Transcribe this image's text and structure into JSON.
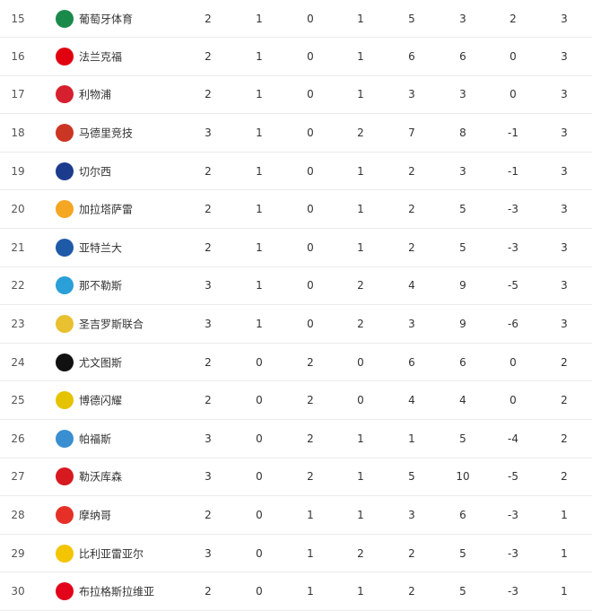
{
  "columns_note_hidden": null,
  "rows": [
    {
      "rank": "15",
      "team": "葡萄牙体育",
      "logo": "sporting-cp-logo",
      "color": "#1a8a4a",
      "values": [
        "2",
        "1",
        "0",
        "1",
        "5",
        "3",
        "2",
        "3"
      ]
    },
    {
      "rank": "16",
      "team": "法兰克福",
      "logo": "eintracht-frankfurt-logo",
      "color": "#e1000f",
      "values": [
        "2",
        "1",
        "0",
        "1",
        "6",
        "6",
        "0",
        "3"
      ]
    },
    {
      "rank": "17",
      "team": "利物浦",
      "logo": "liverpool-logo",
      "color": "#d6202f",
      "values": [
        "2",
        "1",
        "0",
        "1",
        "3",
        "3",
        "0",
        "3"
      ]
    },
    {
      "rank": "18",
      "team": "马德里竞技",
      "logo": "atletico-madrid-logo",
      "color": "#cb3524",
      "values": [
        "3",
        "1",
        "0",
        "2",
        "7",
        "8",
        "-1",
        "3"
      ]
    },
    {
      "rank": "19",
      "team": "切尔西",
      "logo": "chelsea-logo",
      "color": "#1d3b8c",
      "values": [
        "2",
        "1",
        "0",
        "1",
        "2",
        "3",
        "-1",
        "3"
      ]
    },
    {
      "rank": "20",
      "team": "加拉塔萨雷",
      "logo": "galatasaray-logo",
      "color": "#f5a623",
      "values": [
        "2",
        "1",
        "0",
        "1",
        "2",
        "5",
        "-3",
        "3"
      ]
    },
    {
      "rank": "21",
      "team": "亚特兰大",
      "logo": "atalanta-logo",
      "color": "#1e5aa8",
      "values": [
        "2",
        "1",
        "0",
        "1",
        "2",
        "5",
        "-3",
        "3"
      ]
    },
    {
      "rank": "22",
      "team": "那不勒斯",
      "logo": "napoli-logo",
      "color": "#2a9fd8",
      "values": [
        "3",
        "1",
        "0",
        "2",
        "4",
        "9",
        "-5",
        "3"
      ]
    },
    {
      "rank": "23",
      "team": "圣吉罗斯联合",
      "logo": "union-saint-gilloise-logo",
      "color": "#e8c030",
      "values": [
        "3",
        "1",
        "0",
        "2",
        "3",
        "9",
        "-6",
        "3"
      ]
    },
    {
      "rank": "24",
      "team": "尤文图斯",
      "logo": "juventus-logo",
      "color": "#111111",
      "values": [
        "2",
        "0",
        "2",
        "0",
        "6",
        "6",
        "0",
        "2"
      ]
    },
    {
      "rank": "25",
      "team": "博德闪耀",
      "logo": "bodo-glimt-logo",
      "color": "#e5c300",
      "values": [
        "2",
        "0",
        "2",
        "0",
        "4",
        "4",
        "0",
        "2"
      ]
    },
    {
      "rank": "26",
      "team": "帕福斯",
      "logo": "pafos-logo",
      "color": "#3a8fd0",
      "values": [
        "3",
        "0",
        "2",
        "1",
        "1",
        "5",
        "-4",
        "2"
      ]
    },
    {
      "rank": "27",
      "team": "勒沃库森",
      "logo": "leverkusen-logo",
      "color": "#d71920",
      "values": [
        "3",
        "0",
        "2",
        "1",
        "5",
        "10",
        "-5",
        "2"
      ]
    },
    {
      "rank": "28",
      "team": "摩纳哥",
      "logo": "monaco-logo",
      "color": "#e63027",
      "values": [
        "2",
        "0",
        "1",
        "1",
        "3",
        "6",
        "-3",
        "1"
      ]
    },
    {
      "rank": "29",
      "team": "比利亚雷亚尔",
      "logo": "villarreal-logo",
      "color": "#f3c400",
      "values": [
        "3",
        "0",
        "1",
        "2",
        "2",
        "5",
        "-3",
        "1"
      ]
    },
    {
      "rank": "30",
      "team": "布拉格斯拉维亚",
      "logo": "slavia-prague-logo",
      "color": "#e2001a",
      "values": [
        "2",
        "0",
        "1",
        "1",
        "2",
        "5",
        "-3",
        "1"
      ]
    }
  ]
}
